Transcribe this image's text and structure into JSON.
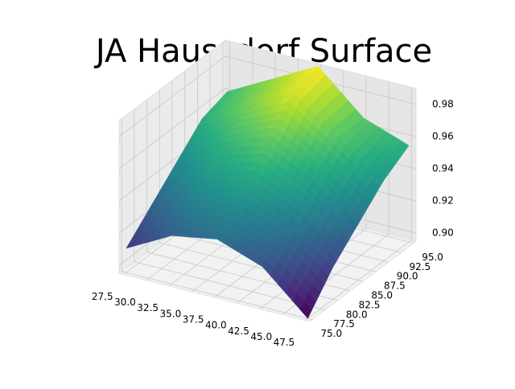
{
  "chart_data": {
    "type": "surface",
    "title": "JA Haussdorf Surface",
    "x": [
      27.5,
      32.5,
      37.5,
      42.5,
      47.5
    ],
    "y": [
      75,
      80,
      85,
      90,
      95
    ],
    "z": [
      [
        0.91,
        0.925,
        0.93,
        0.92,
        0.895
      ],
      [
        0.925,
        0.94,
        0.945,
        0.935,
        0.915
      ],
      [
        0.94,
        0.955,
        0.965,
        0.95,
        0.93
      ],
      [
        0.955,
        0.97,
        0.985,
        0.965,
        0.945
      ],
      [
        0.96,
        0.975,
        0.99,
        0.965,
        0.955
      ]
    ],
    "colormap": "viridis",
    "xlim": [
      27.0,
      48.0
    ],
    "ylim": [
      74.5,
      95.5
    ],
    "zlim": [
      0.895,
      0.99
    ],
    "xticks": [
      27.5,
      {
        "value": 30,
        "label": "30.0"
      },
      32.5,
      {
        "value": 35,
        "label": "35.0"
      },
      37.5,
      {
        "value": 40,
        "label": "40.0"
      },
      42.5,
      {
        "value": 45,
        "label": "45.0"
      },
      47.5
    ],
    "yticks": [
      {
        "value": 75,
        "label": "75.0"
      },
      77.5,
      {
        "value": 80,
        "label": "80.0"
      },
      82.5,
      {
        "value": 85,
        "label": "85.0"
      },
      87.5,
      {
        "value": 90,
        "label": "90.0"
      },
      92.5,
      {
        "value": 95,
        "label": "95.0"
      }
    ],
    "zticks": [
      {
        "value": 0.9,
        "label": "0.90"
      },
      {
        "value": 0.92,
        "label": "0.92"
      },
      {
        "value": 0.94,
        "label": "0.94"
      },
      {
        "value": 0.96,
        "label": "0.96"
      },
      {
        "value": 0.98,
        "label": "0.98"
      }
    ],
    "grid": true
  }
}
